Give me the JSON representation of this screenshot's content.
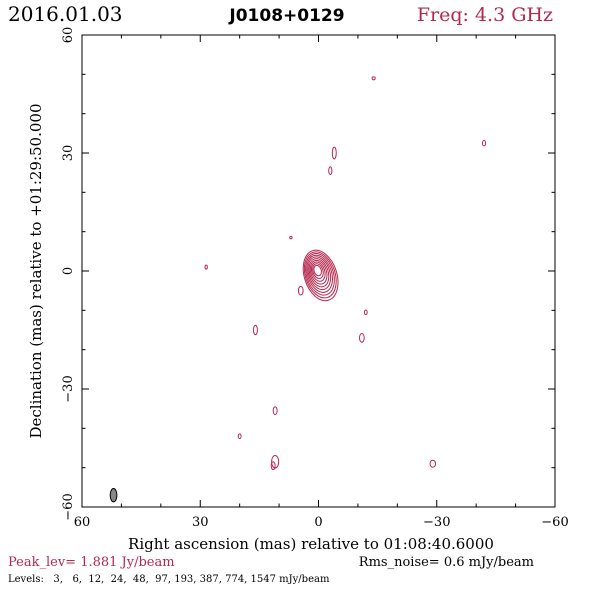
{
  "header": {
    "date": "2016.01.03",
    "source": "J0108+0129",
    "freq": "Freq: 4.3 GHz"
  },
  "footer": {
    "peak": "Peak_lev=  1.881 Jy/beam",
    "rms": "Rms_noise=  0.6 mJy/beam",
    "levels": "Levels:   3,   6,  12,  24,  48,  97, 193, 387, 774, 1547 mJy/beam"
  },
  "colors": {
    "contour": "#b5284e",
    "header_accent": "#b5284e",
    "axis": "#000000",
    "beam_fill": "#888888"
  },
  "chart_data": {
    "type": "contour",
    "xlabel": "Right ascension (mas) relative to 01:08:40.6000",
    "ylabel": "Declination (mas) relative to +01:29:50.000",
    "xlim": [
      60,
      -60
    ],
    "ylim": [
      -60,
      60
    ],
    "xticks": [
      60,
      30,
      0,
      -30,
      -60
    ],
    "yticks": [
      -60,
      -30,
      0,
      30,
      60
    ],
    "xtick_labels": [
      "60",
      "30",
      "0",
      "−30",
      "−60"
    ],
    "ytick_labels": [
      "−60",
      "−30",
      "0",
      "30",
      "60"
    ],
    "levels_mJy": [
      3,
      6,
      12,
      24,
      48,
      97,
      193,
      387,
      774,
      1547
    ],
    "core": {
      "x": 0.3,
      "y": 0.5,
      "rings": 10
    },
    "components": [
      {
        "x": -14,
        "y": 49,
        "rx": 0.4,
        "ry": 0.4
      },
      {
        "x": -4,
        "y": 30,
        "rx": 0.5,
        "ry": 1.5
      },
      {
        "x": -3,
        "y": 25.5,
        "rx": 0.4,
        "ry": 1.0
      },
      {
        "x": -42,
        "y": 32.5,
        "rx": 0.4,
        "ry": 0.7
      },
      {
        "x": 7,
        "y": 8.5,
        "rx": 0.3,
        "ry": 0.3
      },
      {
        "x": 28.5,
        "y": 1,
        "rx": 0.3,
        "ry": 0.5
      },
      {
        "x": 4.5,
        "y": -5,
        "rx": 0.6,
        "ry": 1.1
      },
      {
        "x": 16,
        "y": -15,
        "rx": 0.5,
        "ry": 1.2
      },
      {
        "x": -12,
        "y": -10.5,
        "rx": 0.35,
        "ry": 0.6
      },
      {
        "x": -11,
        "y": -17,
        "rx": 0.6,
        "ry": 1.1
      },
      {
        "x": 11,
        "y": -35.5,
        "rx": 0.5,
        "ry": 1.0
      },
      {
        "x": 20,
        "y": -42,
        "rx": 0.35,
        "ry": 0.6
      },
      {
        "x": 11,
        "y": -48.5,
        "rx": 0.9,
        "ry": 1.6
      },
      {
        "x": 11.5,
        "y": -49.5,
        "rx": 0.5,
        "ry": 1.0
      },
      {
        "x": -29,
        "y": -49,
        "rx": 0.7,
        "ry": 0.9
      }
    ],
    "beam": {
      "x": 52,
      "y": -57,
      "rx": 0.85,
      "ry": 1.7
    }
  }
}
